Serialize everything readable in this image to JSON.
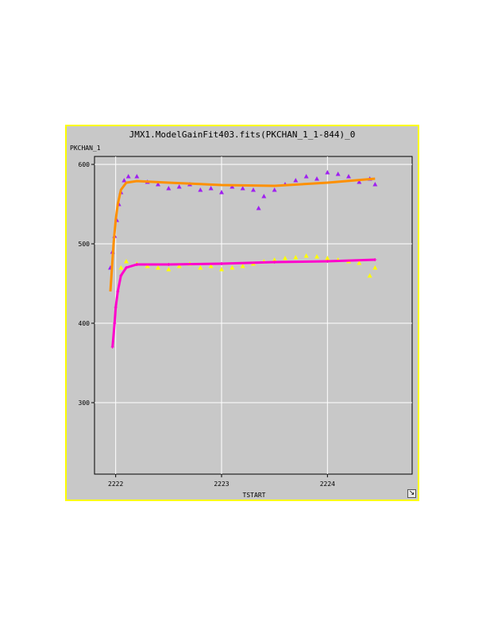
{
  "window": {
    "title": "JMX1.ModelGainFit403.fits(PKCHAN_1_1-844)_0",
    "frame_color": "#ffff00",
    "background": "#c8c8c8"
  },
  "chart_data": {
    "type": "scatter",
    "title": "JMX1.ModelGainFit403.fits(PKCHAN_1_1-844)_0",
    "xlabel": "TSTART",
    "ylabel": "PKCHAN_1",
    "xlim": [
      2221.8,
      2224.8
    ],
    "ylim": [
      210,
      610
    ],
    "x_ticks": [
      2222,
      2223,
      2224
    ],
    "y_ticks": [
      300,
      400,
      500,
      600
    ],
    "grid": true,
    "series": [
      {
        "color": "#a020f0",
        "marker": "triangle",
        "kind": "scatter",
        "x": [
          2221.95,
          2221.97,
          2221.99,
          2222.01,
          2222.03,
          2222.05,
          2222.08,
          2222.12,
          2222.2,
          2222.3,
          2222.4,
          2222.5,
          2222.6,
          2222.7,
          2222.8,
          2222.9,
          2223.0,
          2223.1,
          2223.2,
          2223.3,
          2223.35,
          2223.4,
          2223.5,
          2223.6,
          2223.7,
          2223.8,
          2223.9,
          2224.0,
          2224.1,
          2224.2,
          2224.3,
          2224.4,
          2224.45
        ],
        "y": [
          470,
          490,
          510,
          530,
          550,
          565,
          580,
          585,
          585,
          578,
          575,
          570,
          572,
          575,
          568,
          570,
          565,
          572,
          570,
          568,
          545,
          560,
          568,
          575,
          580,
          585,
          582,
          590,
          588,
          585,
          578,
          582,
          575
        ]
      },
      {
        "color": "#ff9000",
        "kind": "fit-line",
        "x": [
          2221.95,
          2221.98,
          2222.0,
          2222.02,
          2222.05,
          2222.1,
          2222.2,
          2222.5,
          2223.0,
          2223.5,
          2224.0,
          2224.45
        ],
        "y": [
          440,
          500,
          530,
          550,
          568,
          577,
          579,
          577,
          574,
          573,
          577,
          582
        ]
      },
      {
        "color": "#ffff00",
        "marker": "triangle",
        "kind": "scatter",
        "x": [
          2222.05,
          2222.1,
          2222.2,
          2222.3,
          2222.4,
          2222.5,
          2222.6,
          2222.7,
          2222.8,
          2222.9,
          2223.0,
          2223.1,
          2223.2,
          2223.3,
          2223.4,
          2223.5,
          2223.6,
          2223.7,
          2223.8,
          2223.9,
          2224.0,
          2224.1,
          2224.2,
          2224.3,
          2224.4,
          2224.45
        ],
        "y": [
          470,
          478,
          475,
          472,
          470,
          468,
          472,
          475,
          470,
          472,
          468,
          470,
          472,
          475,
          478,
          480,
          482,
          483,
          485,
          484,
          482,
          480,
          478,
          476,
          460,
          470
        ]
      },
      {
        "color": "#ff00cc",
        "marker": "plus",
        "kind": "fit-line",
        "x": [
          2221.97,
          2221.99,
          2222.0,
          2222.02,
          2222.05,
          2222.1,
          2222.2,
          2222.5,
          2223.0,
          2223.5,
          2224.0,
          2224.45
        ],
        "y": [
          370,
          400,
          420,
          440,
          460,
          470,
          474,
          474,
          475,
          477,
          478,
          480
        ]
      }
    ]
  }
}
